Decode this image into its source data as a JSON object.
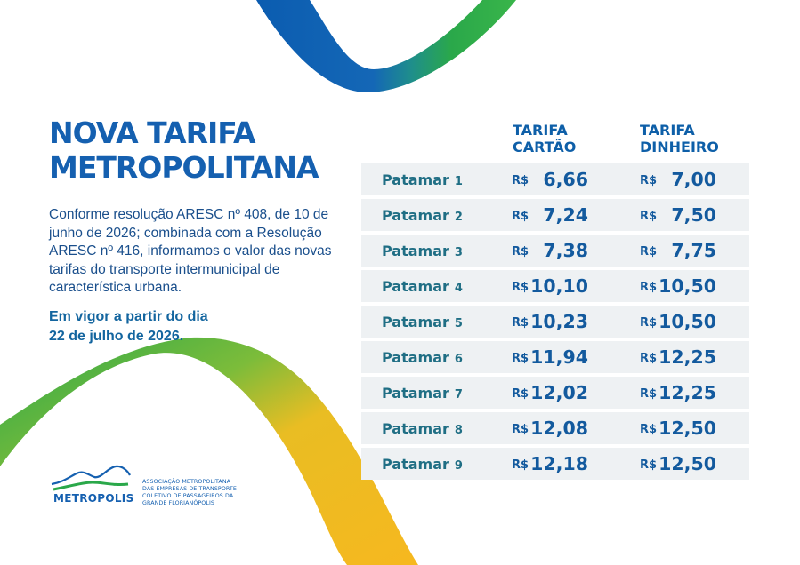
{
  "title": {
    "line1": "NOVA TARIFA",
    "line2": "METROPOLITANA"
  },
  "description": "Conforme resolução ARESC nº 408, de 10 de junho de 2026; combinada com a Resolução ARESC nº 416, informamos o valor das novas tarifas do transporte intermunicipal de característica urbana.",
  "vigor": {
    "line1": "Em vigor a partir do dia",
    "line2": "22 de julho de 2026."
  },
  "headers": {
    "cartao": {
      "line1": "TARIFA",
      "line2": "CARTÃO"
    },
    "dinheiro": {
      "line1": "TARIFA",
      "line2": "DINHEIRO"
    }
  },
  "currency": "R$",
  "rows": [
    {
      "label": "Patamar",
      "num": "1",
      "cartao": "6,66",
      "dinheiro": "7,00"
    },
    {
      "label": "Patamar",
      "num": "2",
      "cartao": "7,24",
      "dinheiro": "7,50"
    },
    {
      "label": "Patamar",
      "num": "3",
      "cartao": "7,38",
      "dinheiro": "7,75"
    },
    {
      "label": "Patamar",
      "num": "4",
      "cartao": "10,10",
      "dinheiro": "10,50"
    },
    {
      "label": "Patamar",
      "num": "5",
      "cartao": "10,23",
      "dinheiro": "10,50"
    },
    {
      "label": "Patamar",
      "num": "6",
      "cartao": "11,94",
      "dinheiro": "12,25"
    },
    {
      "label": "Patamar",
      "num": "7",
      "cartao": "12,02",
      "dinheiro": "12,25"
    },
    {
      "label": "Patamar",
      "num": "8",
      "cartao": "12,08",
      "dinheiro": "12,50"
    },
    {
      "label": "Patamar",
      "num": "9",
      "cartao": "12,18",
      "dinheiro": "12,50"
    }
  ],
  "logo": {
    "name": "METROPOLIS",
    "association": [
      "ASSOCIAÇÃO METROPOLITANA",
      "DAS EMPRESAS DE TRANSPORTE",
      "COLETIVO DE PASSAGEIROS DA",
      "GRANDE FLORIANÓPOLIS"
    ]
  },
  "colors": {
    "blue": "#1560b0",
    "green": "#2aa84a",
    "yellow": "#f6b81f",
    "row_bg": "#eef1f3"
  }
}
